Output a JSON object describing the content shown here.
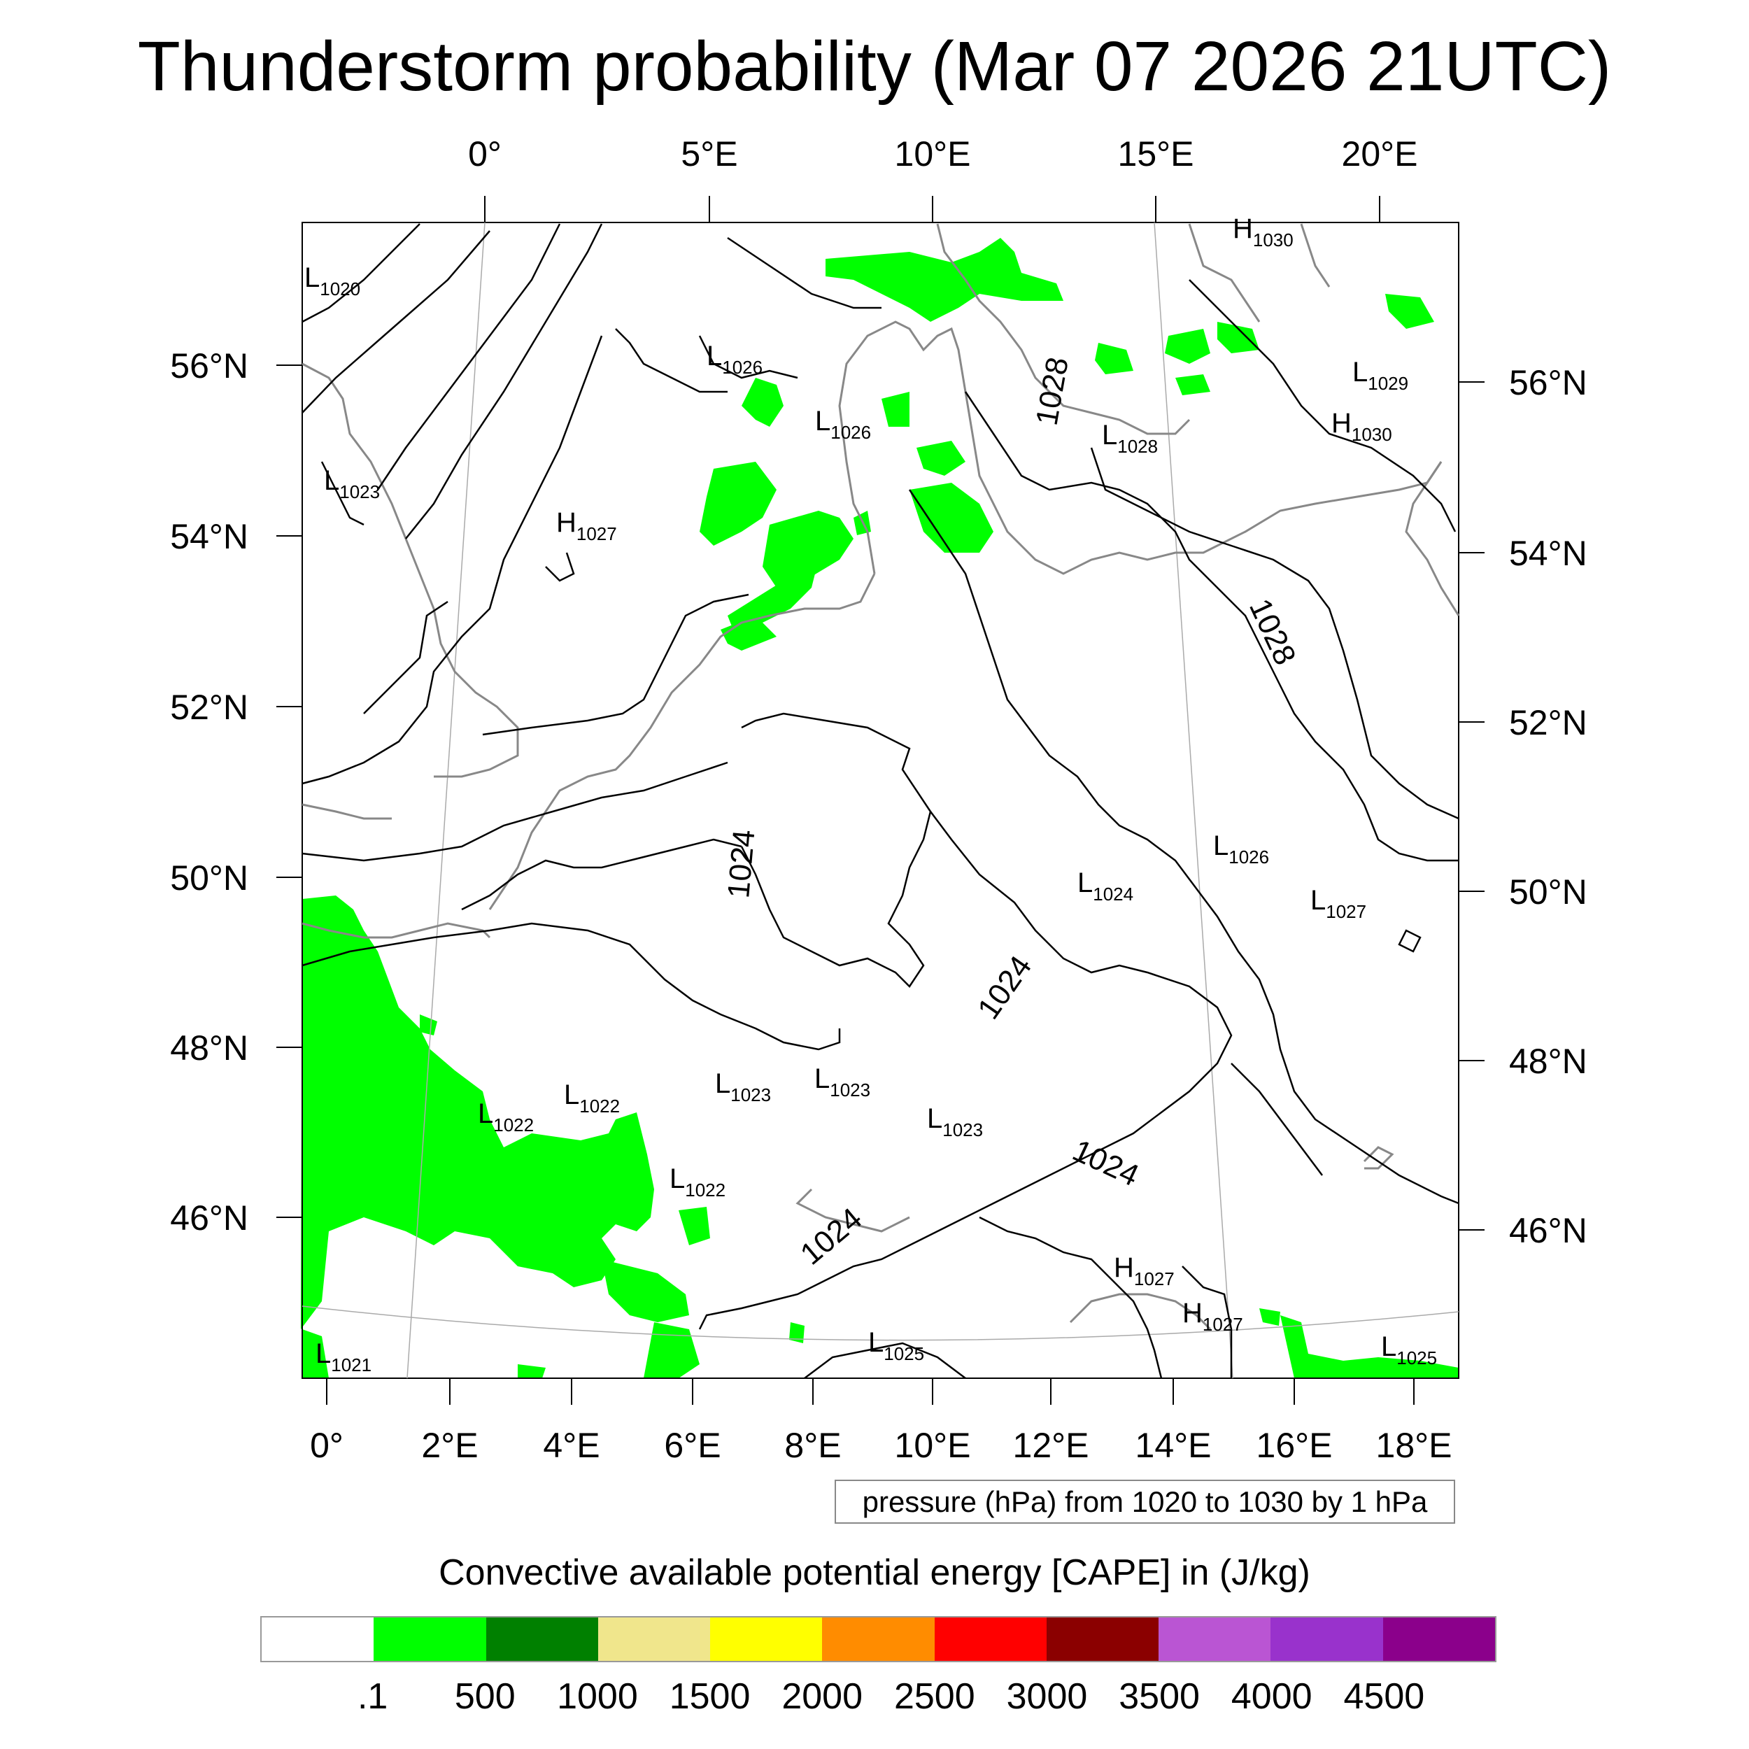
{
  "title": "Thunderstorm probability (Mar 07 2026 21UTC)",
  "top_lon_labels": [
    "0°",
    "5°E",
    "10°E",
    "15°E",
    "20°E"
  ],
  "bottom_lon_labels": [
    "0°",
    "2°E",
    "4°E",
    "6°E",
    "8°E",
    "10°E",
    "12°E",
    "14°E",
    "16°E",
    "18°E"
  ],
  "left_lat_labels": [
    "56°N",
    "54°N",
    "52°N",
    "50°N",
    "48°N",
    "46°N"
  ],
  "right_lat_labels": [
    "56°N",
    "54°N",
    "52°N",
    "50°N",
    "48°N",
    "46°N"
  ],
  "pressure_centers": [
    {
      "type": "L",
      "value": "1020"
    },
    {
      "type": "L",
      "value": "1023"
    },
    {
      "type": "L",
      "value": "1026"
    },
    {
      "type": "L",
      "value": "1026"
    },
    {
      "type": "H",
      "value": "1027"
    },
    {
      "type": "L",
      "value": "1028"
    },
    {
      "type": "H",
      "value": "1030"
    },
    {
      "type": "L",
      "value": "1029"
    },
    {
      "type": "H",
      "value": "1030"
    },
    {
      "type": "L",
      "value": "1026"
    },
    {
      "type": "L",
      "value": "1024"
    },
    {
      "type": "L",
      "value": "1027"
    },
    {
      "type": "L",
      "value": "1022"
    },
    {
      "type": "L",
      "value": "1022"
    },
    {
      "type": "L",
      "value": "1023"
    },
    {
      "type": "L",
      "value": "1023"
    },
    {
      "type": "L",
      "value": "1023"
    },
    {
      "type": "L",
      "value": "1022"
    },
    {
      "type": "H",
      "value": "1027"
    },
    {
      "type": "H",
      "value": "1027"
    },
    {
      "type": "L",
      "value": "1021"
    },
    {
      "type": "L",
      "value": "1025"
    },
    {
      "type": "L",
      "value": "1025"
    }
  ],
  "isobar_labels": [
    "1028",
    "1028",
    "1024",
    "1024",
    "1024",
    "1024"
  ],
  "pressure_note": "pressure (hPa) from 1020 to 1030 by 1 hPa",
  "colorbar": {
    "title": "Convective available potential energy [CAPE] in (J/kg)",
    "colors": [
      "#ffffff",
      "#00ff00",
      "#008000",
      "#f0e68c",
      "#ffff00",
      "#ff8c00",
      "#ff0000",
      "#8b0000",
      "#ba55d3",
      "#9932cc",
      "#8b008b"
    ],
    "labels": [
      ".1",
      "500",
      "1000",
      "1500",
      "2000",
      "2500",
      "3000",
      "3500",
      "4000",
      "4500"
    ]
  },
  "cape_color": "#00ff00"
}
